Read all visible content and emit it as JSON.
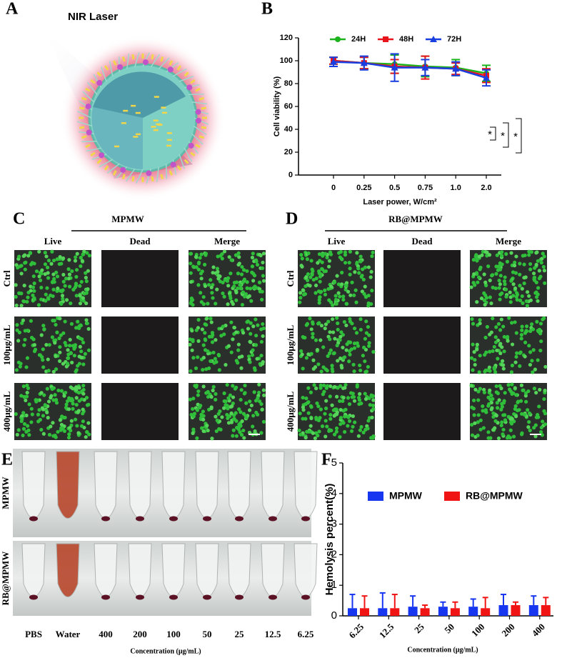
{
  "panel_labels": [
    "A",
    "B",
    "C",
    "D",
    "E",
    "F"
  ],
  "panel_a": {
    "title": "NIR Laser"
  },
  "panel_c": {
    "title": "MPMW",
    "columns": [
      "Live",
      "Dead",
      "Merge"
    ],
    "rows": [
      "Ctrl",
      "100μg/mL",
      "400μg/mL"
    ]
  },
  "panel_d": {
    "title": "RB@MPMW",
    "columns": [
      "Live",
      "Dead",
      "Merge"
    ],
    "rows": [
      "Ctrl",
      "100μg/mL",
      "400μg/mL"
    ]
  },
  "panel_e": {
    "rows": [
      "MPMW",
      "RB@MPMW"
    ],
    "samples": [
      "PBS",
      "Water",
      "400",
      "200",
      "100",
      "50",
      "25",
      "12.5",
      "6.25"
    ],
    "xlabel": "Concentration (μg/mL)"
  },
  "chart_data": [
    {
      "type": "line",
      "xlabel": "Laser power, W/cm²",
      "ylabel": "Cell viability (%)",
      "categories": [
        "0",
        "0.25",
        "0.5",
        "0.75",
        "1.0",
        "2.0"
      ],
      "ylim": [
        0,
        120
      ],
      "yticks": [
        0,
        20,
        40,
        60,
        80,
        100,
        120
      ],
      "series": [
        {
          "name": "24H",
          "color": "#1db31d",
          "marker": "circle",
          "values": [
            100,
            98,
            97,
            95,
            94,
            89
          ],
          "errors": [
            3,
            5,
            8,
            9,
            7,
            7
          ]
        },
        {
          "name": "48H",
          "color": "#e8141b",
          "marker": "square",
          "values": [
            100,
            98,
            95,
            94,
            93,
            87
          ],
          "errors": [
            3,
            5,
            6,
            10,
            5,
            6
          ]
        },
        {
          "name": "72H",
          "color": "#1a3fe0",
          "marker": "triangle",
          "values": [
            99,
            98,
            94,
            94,
            93,
            85
          ],
          "errors": [
            4,
            6,
            12,
            7,
            6,
            7
          ]
        }
      ],
      "annotations": [
        "*",
        "*",
        "*"
      ]
    },
    {
      "type": "bar",
      "xlabel": "Concentration (μg/mL)",
      "ylabel": "Hemolysis percent(%)",
      "categories": [
        "6.25",
        "12.5",
        "25",
        "50",
        "100",
        "200",
        "400"
      ],
      "ylim": [
        0,
        5
      ],
      "yticks": [
        0,
        1,
        2,
        3,
        4,
        5
      ],
      "series": [
        {
          "name": "MPMW",
          "color": "#1736f0",
          "values": [
            0.25,
            0.25,
            0.3,
            0.3,
            0.3,
            0.35,
            0.35
          ],
          "errors": [
            0.45,
            0.5,
            0.35,
            0.15,
            0.25,
            0.35,
            0.3
          ]
        },
        {
          "name": "RB@MPMW",
          "color": "#f01414",
          "values": [
            0.25,
            0.25,
            0.25,
            0.25,
            0.25,
            0.35,
            0.35
          ],
          "errors": [
            0.4,
            0.45,
            0.1,
            0.2,
            0.35,
            0.1,
            0.25
          ]
        }
      ]
    }
  ]
}
